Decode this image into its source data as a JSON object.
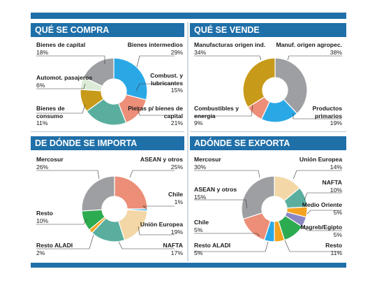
{
  "colors": {
    "header": "#1f6fa8",
    "gray": "#9d9fa2",
    "blue": "#2aa8e6",
    "salmon": "#ec8e78",
    "teal": "#5aae9e",
    "gold": "#c89a1a",
    "lightgreen": "#dcebd8",
    "green": "#2dab51",
    "tan": "#f3d7a6",
    "orange": "#f4a321",
    "purple": "#8a86c6"
  },
  "chart_data": [
    {
      "type": "pie",
      "title": "QUÉ SE COMPRA",
      "slices": [
        {
          "name": "Bienes intermedios",
          "value": 29,
          "pct": "29%",
          "color": "blue"
        },
        {
          "name": "Combust. y lubricantes",
          "value": 15,
          "pct": "15%",
          "color": "salmon"
        },
        {
          "name": "Piezas p/ bienes de capital",
          "value": 21,
          "pct": "21%",
          "color": "teal"
        },
        {
          "name": "Bienes de consumo",
          "value": 11,
          "pct": "11%",
          "color": "gold"
        },
        {
          "name": "Automot. pasajeros",
          "value": 6,
          "pct": "6%",
          "color": "lightgreen"
        },
        {
          "name": "Bienes de capital",
          "value": 18,
          "pct": "18%",
          "color": "gray"
        }
      ]
    },
    {
      "type": "pie",
      "title": "QUÉ SE VENDE",
      "slices": [
        {
          "name": "Manuf. origen agropec.",
          "value": 38,
          "pct": "38%",
          "color": "gray"
        },
        {
          "name": "Productos primarios",
          "value": 19,
          "pct": "19%",
          "color": "blue"
        },
        {
          "name": "Combustibles y energía",
          "value": 9,
          "pct": "9%",
          "color": "salmon"
        },
        {
          "name": "Manufacturas origen ind.",
          "value": 34,
          "pct": "34%",
          "color": "gold"
        }
      ]
    },
    {
      "type": "pie",
      "title": "DE DÓNDE SE IMPORTA",
      "slices": [
        {
          "name": "ASEAN y otros",
          "value": 25,
          "pct": "25%",
          "color": "salmon"
        },
        {
          "name": "Chile",
          "value": 1,
          "pct": "1%",
          "color": "blue"
        },
        {
          "name": "Unión Europea",
          "value": 19,
          "pct": "19%",
          "color": "tan"
        },
        {
          "name": "NAFTA",
          "value": 17,
          "pct": "17%",
          "color": "teal"
        },
        {
          "name": "Resto ALADI",
          "value": 2,
          "pct": "2%",
          "color": "orange"
        },
        {
          "name": "Resto",
          "value": 10,
          "pct": "10%",
          "color": "green"
        },
        {
          "name": "Mercosur",
          "value": 26,
          "pct": "26%",
          "color": "gray"
        }
      ]
    },
    {
      "type": "pie",
      "title": "ADÓNDE SE EXPORTA",
      "slices": [
        {
          "name": "Unión Europea",
          "value": 14,
          "pct": "14%",
          "color": "tan"
        },
        {
          "name": "NAFTA",
          "value": 10,
          "pct": "10%",
          "color": "teal"
        },
        {
          "name": "Medio Oriente",
          "value": 5,
          "pct": "5%",
          "color": "orange"
        },
        {
          "name": "Magreb/Egipto",
          "value": 5,
          "pct": "5%",
          "color": "purple"
        },
        {
          "name": "Resto",
          "value": 11,
          "pct": "11%",
          "color": "green"
        },
        {
          "name": "Resto ALADI",
          "value": 5,
          "pct": "5%",
          "color": "orange"
        },
        {
          "name": "Chile",
          "value": 5,
          "pct": "5%",
          "color": "blue"
        },
        {
          "name": "ASEAN y otros",
          "value": 15,
          "pct": "15%",
          "color": "salmon"
        },
        {
          "name": "Mercosur",
          "value": 30,
          "pct": "30%",
          "color": "gray"
        }
      ]
    }
  ]
}
